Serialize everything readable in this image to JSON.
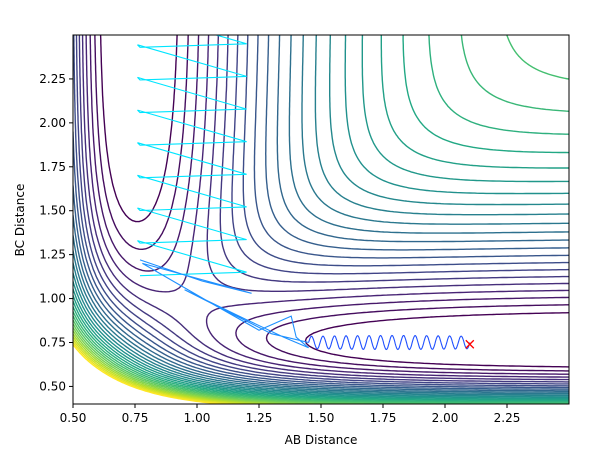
{
  "chart_data": {
    "type": "contour",
    "title": "",
    "xlabel": "AB Distance",
    "ylabel": "BC Distance",
    "xlim": [
      0.5,
      2.5
    ],
    "ylim": [
      0.4,
      2.5
    ],
    "x_ticks": [
      "0.50",
      "0.75",
      "1.00",
      "1.25",
      "1.50",
      "1.75",
      "2.00",
      "2.25"
    ],
    "y_ticks": [
      "0.50",
      "0.75",
      "1.00",
      "1.25",
      "1.50",
      "1.75",
      "2.00",
      "2.25"
    ],
    "colormap": "viridis",
    "grid": false,
    "end_marker": {
      "x": 2.1,
      "y": 0.74,
      "symbol": "x",
      "color": "#ff0000"
    },
    "trajectory_colors": [
      "#00e5ff",
      "#1e90ff",
      "#2050ff"
    ]
  }
}
